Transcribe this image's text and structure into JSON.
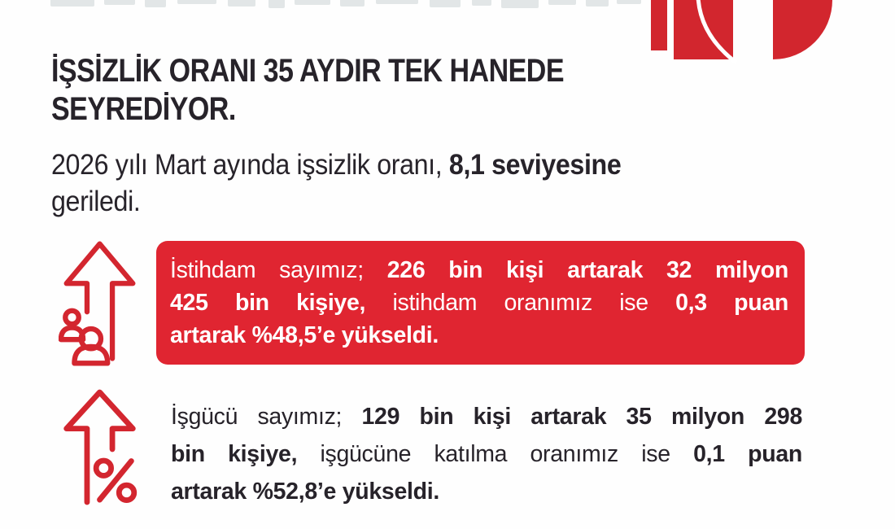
{
  "colors": {
    "brand_red": "#d2262e",
    "box_red": "#e02531",
    "text_dark": "#27232a",
    "box_text": "#ffffff"
  },
  "title": {
    "lines": [
      "İŞSİZLİK ORANI 35 AYDIR TEK HANEDE",
      "SEYREDİYOR."
    ]
  },
  "subtitle": {
    "lines": [
      [
        {
          "t": "2026 yılı Mart ayında işsizlik oranı, ",
          "b": false
        },
        {
          "t": "8,1 seviyesine",
          "b": true
        }
      ],
      [
        {
          "t": "geriledi.",
          "b": false
        }
      ]
    ]
  },
  "stats": [
    {
      "name": "istihdam",
      "icon": "up-arrow-people-icon",
      "highlight": true,
      "lines": [
        [
          {
            "t": "İstihdam sayımız; ",
            "b": false
          },
          {
            "t": "226 bin kişi artarak 32 milyon",
            "b": true
          }
        ],
        [
          {
            "t": "425 bin kişiye,",
            "b": true
          },
          {
            "t": " istihdam oranımız ise ",
            "b": false
          },
          {
            "t": "0,3 puan",
            "b": true
          }
        ],
        [
          {
            "t": "artarak %48,5’e yükseldi.",
            "b": true
          }
        ]
      ]
    },
    {
      "name": "isgucu",
      "icon": "up-arrow-percent-icon",
      "highlight": false,
      "lines": [
        [
          {
            "t": "İşgücü sayımız; ",
            "b": false
          },
          {
            "t": "129 bin kişi artarak 35 milyon 298",
            "b": true
          }
        ],
        [
          {
            "t": "bin kişiye,",
            "b": true
          },
          {
            "t": " işgücüne katılma oranımız ise ",
            "b": false
          },
          {
            "t": "0,1 puan",
            "b": true
          }
        ],
        [
          {
            "t": "artarak %52,8’e yükseldi.",
            "b": true
          }
        ]
      ]
    }
  ]
}
